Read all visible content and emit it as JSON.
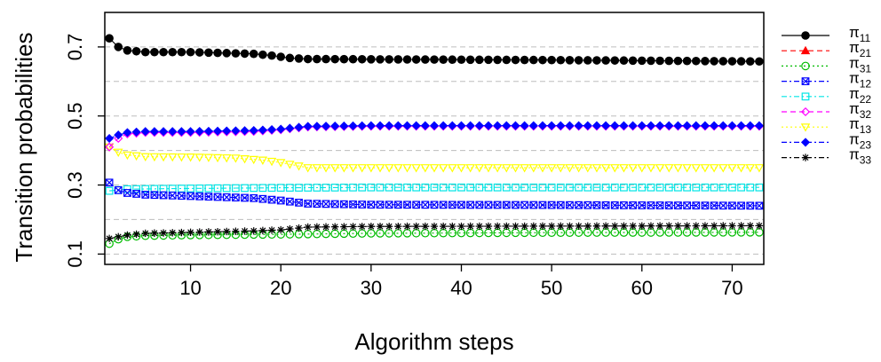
{
  "chart_data": {
    "type": "line",
    "xlabel": "Algorithm steps",
    "ylabel": "Transition probabilities",
    "xlim": [
      0.5,
      73.5
    ],
    "ylim": [
      0.07,
      0.8
    ],
    "x_ticks": [
      10,
      20,
      30,
      40,
      50,
      60,
      70
    ],
    "y_ticks": [
      0.1,
      0.3,
      0.5,
      0.7
    ],
    "y_gridlines": [
      0.1,
      0.2,
      0.3,
      0.4,
      0.5,
      0.6,
      0.7,
      0.8
    ],
    "grid": "horizontal dashed",
    "legend_position": "right",
    "series": [
      {
        "name": "π",
        "sub": "11",
        "color": "#000000",
        "marker": "filled-circle",
        "dash": "solid",
        "knots": [
          [
            1,
            0.725
          ],
          [
            2,
            0.7
          ],
          [
            3,
            0.69
          ],
          [
            5,
            0.685
          ],
          [
            8,
            0.685
          ],
          [
            10,
            0.685
          ],
          [
            17,
            0.68
          ],
          [
            19,
            0.675
          ],
          [
            21,
            0.668
          ],
          [
            23,
            0.665
          ],
          [
            50,
            0.662
          ],
          [
            73,
            0.658
          ]
        ]
      },
      {
        "name": "π",
        "sub": "21",
        "color": "#ff0000",
        "marker": "filled-triangle",
        "dash": "dashed",
        "knots": []
      },
      {
        "name": "π",
        "sub": "31",
        "color": "#00bb00",
        "marker": "open-circle",
        "dash": "dotted",
        "knots": [
          [
            1,
            0.13
          ],
          [
            2,
            0.143
          ],
          [
            3,
            0.15
          ],
          [
            5,
            0.153
          ],
          [
            10,
            0.155
          ],
          [
            20,
            0.157
          ],
          [
            30,
            0.16
          ],
          [
            50,
            0.162
          ],
          [
            73,
            0.163
          ]
        ]
      },
      {
        "name": "π",
        "sub": "12",
        "color": "#0000ff",
        "marker": "crossed-square",
        "dash": "dashdot",
        "knots": [
          [
            1,
            0.307
          ],
          [
            2,
            0.285
          ],
          [
            3,
            0.277
          ],
          [
            5,
            0.272
          ],
          [
            10,
            0.268
          ],
          [
            17,
            0.262
          ],
          [
            20,
            0.255
          ],
          [
            23,
            0.246
          ],
          [
            30,
            0.243
          ],
          [
            50,
            0.242
          ],
          [
            73,
            0.24
          ]
        ]
      },
      {
        "name": "π",
        "sub": "22",
        "color": "#00e5e5",
        "marker": "open-square",
        "dash": "dashdot",
        "knots": [
          [
            1,
            0.283
          ],
          [
            3,
            0.288
          ],
          [
            10,
            0.29
          ],
          [
            20,
            0.292
          ],
          [
            30,
            0.293
          ],
          [
            73,
            0.293
          ]
        ]
      },
      {
        "name": "π",
        "sub": "32",
        "color": "#ff00ff",
        "marker": "open-diamond",
        "dash": "dashed",
        "knots": [
          [
            1,
            0.41
          ],
          [
            2,
            0.435
          ],
          [
            3,
            0.448
          ],
          [
            5,
            0.452
          ],
          [
            10,
            0.452
          ],
          [
            17,
            0.455
          ],
          [
            20,
            0.46
          ],
          [
            23,
            0.468
          ],
          [
            30,
            0.47
          ],
          [
            73,
            0.47
          ]
        ]
      },
      {
        "name": "π",
        "sub": "13",
        "color": "#ffff00",
        "marker": "open-triangle-down",
        "dash": "dotted",
        "knots": [
          [
            1,
            0.41
          ],
          [
            2,
            0.395
          ],
          [
            3,
            0.387
          ],
          [
            5,
            0.382
          ],
          [
            10,
            0.381
          ],
          [
            15,
            0.378
          ],
          [
            18,
            0.372
          ],
          [
            20,
            0.365
          ],
          [
            23,
            0.35
          ],
          [
            30,
            0.35
          ],
          [
            73,
            0.35
          ]
        ]
      },
      {
        "name": "π",
        "sub": "23",
        "color": "#0000ff",
        "marker": "filled-diamond",
        "dash": "dashdot",
        "knots": [
          [
            1,
            0.435
          ],
          [
            2,
            0.445
          ],
          [
            3,
            0.452
          ],
          [
            5,
            0.455
          ],
          [
            10,
            0.455
          ],
          [
            17,
            0.458
          ],
          [
            20,
            0.462
          ],
          [
            23,
            0.47
          ],
          [
            30,
            0.472
          ],
          [
            73,
            0.472
          ]
        ]
      },
      {
        "name": "π",
        "sub": "33",
        "color": "#000000",
        "marker": "asterisk",
        "dash": "dashdot",
        "knots": [
          [
            1,
            0.145
          ],
          [
            3,
            0.155
          ],
          [
            5,
            0.16
          ],
          [
            10,
            0.163
          ],
          [
            17,
            0.167
          ],
          [
            20,
            0.17
          ],
          [
            23,
            0.178
          ],
          [
            30,
            0.18
          ],
          [
            73,
            0.182
          ]
        ]
      }
    ]
  }
}
